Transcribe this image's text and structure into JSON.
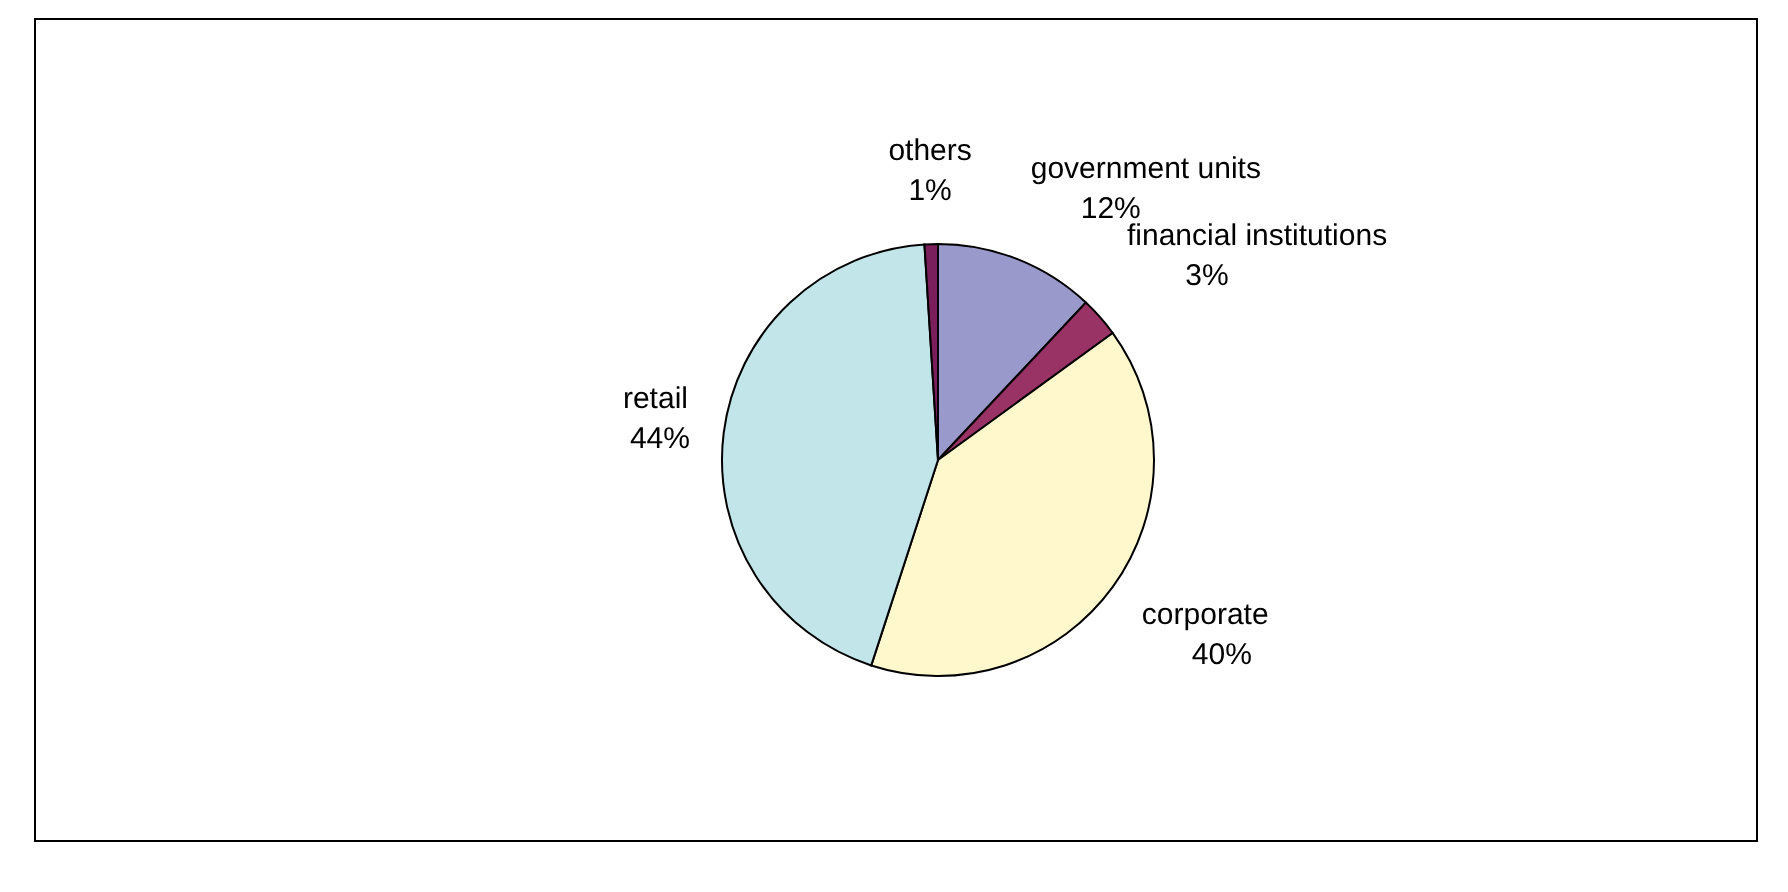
{
  "chart_data": {
    "type": "pie",
    "categories": [
      "government units",
      "financial institutions",
      "corporate",
      "retail",
      "others"
    ],
    "values": [
      12,
      3,
      40,
      44,
      1
    ],
    "value_labels": [
      "12%",
      "3%",
      "40%",
      "44%",
      "1%"
    ],
    "colors": [
      "#9999cc",
      "#993366",
      "#fff8cc",
      "#c2e5ea",
      "#7a1f5c"
    ],
    "legend": false
  }
}
